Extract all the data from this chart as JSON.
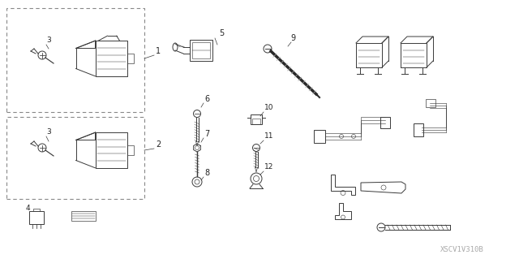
{
  "background_color": "#ffffff",
  "line_color": "#3a3a3a",
  "text_color": "#222222",
  "fig_width": 6.4,
  "fig_height": 3.19,
  "dpi": 100,
  "watermark": "XSCV1V310B"
}
